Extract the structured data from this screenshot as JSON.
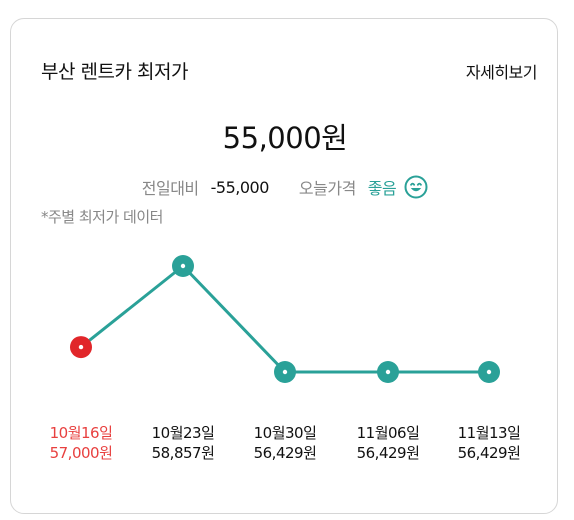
{
  "header": {
    "title": "부산 렌트카 최저가",
    "more_label": "자세히보기"
  },
  "summary": {
    "price": "55,000원",
    "diff_label": "전일대비",
    "diff_value": "-55,000",
    "today_label": "오늘가격",
    "today_value": "좋음",
    "today_icon": "smile-icon"
  },
  "note": "*주별 최저가 데이터",
  "colors": {
    "accent": "#2aa198",
    "highlight": "#e1262a",
    "highlight_text": "#e8403f"
  },
  "chart_data": {
    "type": "line",
    "categories": [
      "10월16일",
      "10월23일",
      "10월30일",
      "11월06일",
      "11월13일"
    ],
    "values": [
      57000,
      58857,
      56429,
      56429,
      56429
    ],
    "value_labels": [
      "57,000원",
      "58,857원",
      "56,429원",
      "56,429원",
      "56,429원"
    ],
    "highlight_index": 0,
    "grid": false,
    "legend": "none"
  }
}
